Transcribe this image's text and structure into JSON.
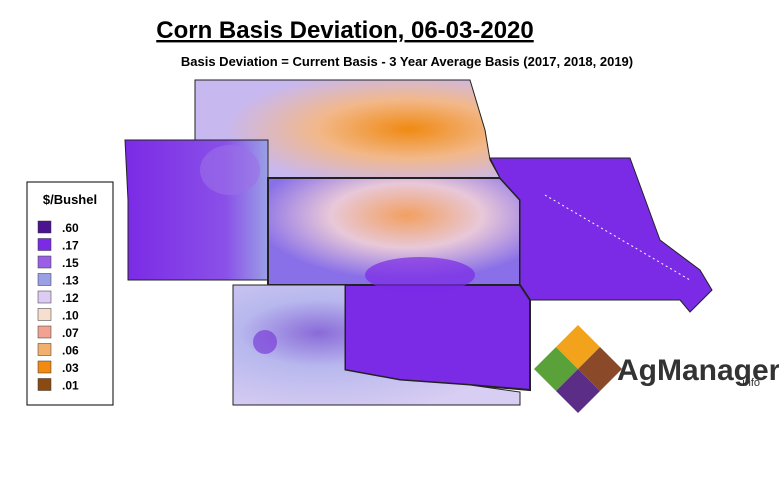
{
  "header": {
    "title": "Corn Basis Deviation, 06-03-2020",
    "subtitle": "Basis Deviation = Current Basis - 3 Year Average Basis (2017, 2018, 2019)"
  },
  "legend": {
    "title": "$/Bushel",
    "items": [
      {
        "label": ".60",
        "color": "#4b138f"
      },
      {
        "label": ".17",
        "color": "#7b2ae6"
      },
      {
        "label": ".15",
        "color": "#9b5fe6"
      },
      {
        "label": ".13",
        "color": "#9aa0e6"
      },
      {
        "label": ".12",
        "color": "#dccbf2"
      },
      {
        "label": ".10",
        "color": "#f6dfce"
      },
      {
        "label": ".07",
        "color": "#f2a291"
      },
      {
        "label": ".06",
        "color": "#f2b06e"
      },
      {
        "label": ".03",
        "color": "#f08a12"
      },
      {
        "label": ".01",
        "color": "#8a4a12"
      }
    ]
  },
  "logo": {
    "name": "AgManager",
    "suffix": ".info"
  }
}
